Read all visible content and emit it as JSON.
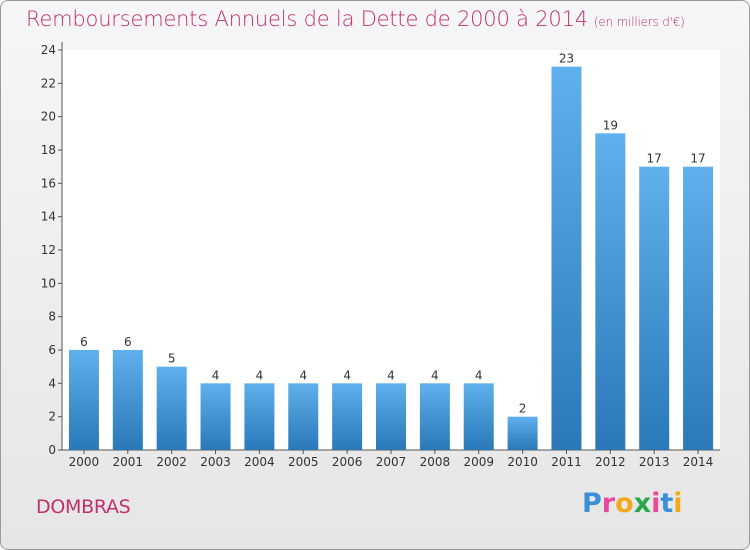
{
  "title": "Remboursements Annuels de la Dette de 2000 à 2014",
  "unit": "(en milliers d'€)",
  "commune": "DOMBRAS",
  "logo": {
    "letters": [
      "P",
      "r",
      "o",
      "x",
      "i",
      "t",
      "i"
    ],
    "colors": [
      "#3a8fd8",
      "#e84b9a",
      "#f2a81d",
      "#2aa84a",
      "#e84b9a",
      "#3a8fd8",
      "#f2a81d"
    ]
  },
  "colors": {
    "bar_light": "#5fb0ec",
    "bar_dark": "#2a78b8",
    "text_accent": "#c0306e"
  },
  "chart_data": {
    "type": "bar",
    "categories": [
      "2000",
      "2001",
      "2002",
      "2003",
      "2004",
      "2005",
      "2006",
      "2007",
      "2008",
      "2009",
      "2010",
      "2011",
      "2012",
      "2013",
      "2014"
    ],
    "values": [
      6,
      6,
      5,
      4,
      4,
      4,
      4,
      4,
      4,
      4,
      2,
      23,
      19,
      17,
      17
    ],
    "data_labels": [
      "6",
      "6",
      "5",
      "4",
      "4",
      "4",
      "4",
      "4",
      "4",
      "4",
      "2",
      "23",
      "19",
      "17",
      "17"
    ],
    "y_ticks": [
      "0",
      "2",
      "4",
      "6",
      "8",
      "10",
      "12",
      "14",
      "16",
      "18",
      "20",
      "22",
      "24"
    ],
    "ylim": [
      0,
      24
    ],
    "grid": false
  }
}
